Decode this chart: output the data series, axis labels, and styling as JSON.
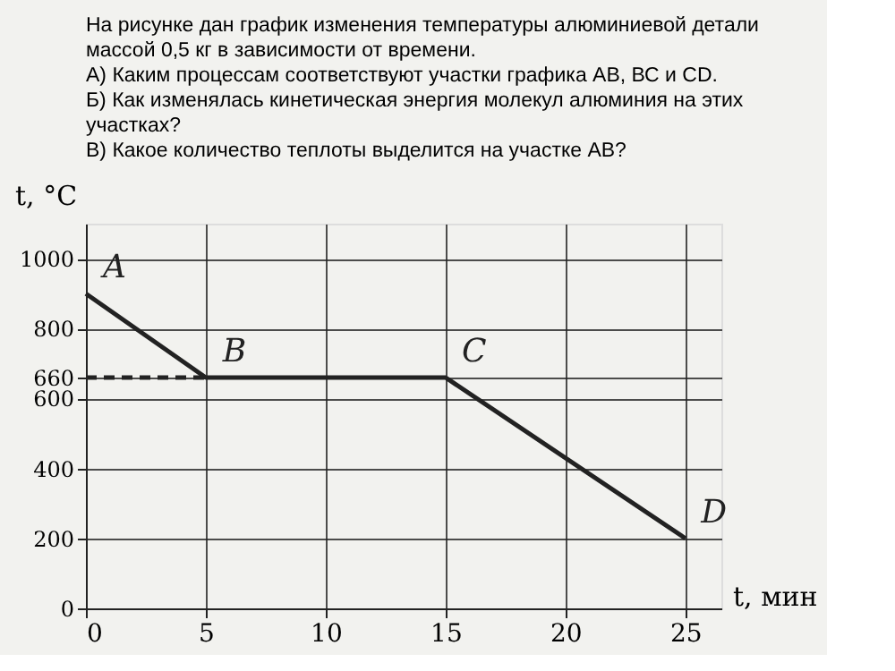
{
  "chart_data": {
    "type": "line",
    "title": "На рисунке    дан график изменения температуры алюминиевой детали\nмассой 0,5 кг в зависимости от времени.\nА) Каким процессам соответствуют участки графика АВ, ВС и CD.\nБ) Как изменялась кинетическая энергия молекул алюминия на этих\nучастках?\nВ) Какое количество теплоты выделится на участке АВ?",
    "xlabel": "t, мин",
    "ylabel": "t, °C",
    "series": [
      {
        "x": [
          0,
          5,
          15,
          25
        ],
        "values": [
          900,
          660,
          660,
          200
        ],
        "color": "#222222",
        "line_style": "solid"
      },
      {
        "x": [
          0,
          5
        ],
        "values": [
          660,
          660
        ],
        "color": "#222222",
        "line_style": "dashed"
      }
    ],
    "annotations": [
      {
        "text": "A",
        "x": 0,
        "y": 900
      },
      {
        "text": "B",
        "x": 5,
        "y": 660
      },
      {
        "text": "C",
        "x": 15,
        "y": 660
      },
      {
        "text": "D",
        "x": 25,
        "y": 200
      }
    ],
    "xlim": [
      0,
      26.5
    ],
    "ylim": [
      0,
      1100
    ],
    "xticks": [
      0,
      5,
      10,
      15,
      20,
      25
    ],
    "yticks": [
      0,
      200,
      400,
      600,
      660,
      800,
      {
        "value": 1000,
        "label": "1000"
      }
    ],
    "grid": true,
    "marker": "none"
  }
}
